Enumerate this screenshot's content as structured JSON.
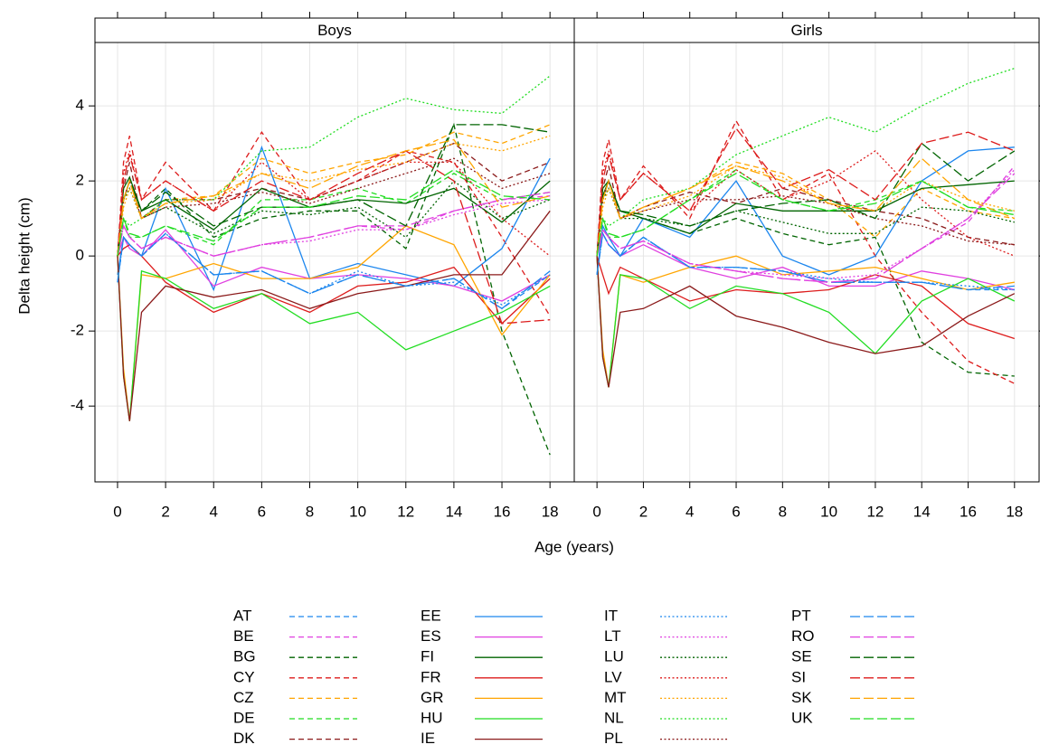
{
  "chart_data": [
    {
      "type": "line",
      "title": "Boys",
      "xlabel": "Age (years)",
      "ylabel": "Delta height (cm)",
      "x": [
        0,
        0.25,
        0.5,
        1,
        2,
        4,
        6,
        8,
        10,
        12,
        14,
        16,
        18
      ],
      "xlim": [
        -0.94,
        19.01
      ],
      "ylim": [
        -6.02,
        5.69
      ],
      "xticks": [
        0,
        2,
        4,
        6,
        8,
        10,
        12,
        14,
        16,
        18
      ],
      "yticks": [
        -4,
        -2,
        0,
        2,
        4
      ],
      "grid": true,
      "series": [
        {
          "name": "AT",
          "color": "#1c86ee",
          "linetype": "dashed",
          "values": [
            -0.7,
            0.5,
            0.3,
            0,
            0.6,
            -0.5,
            -0.4,
            -1,
            -0.5,
            -0.8,
            -0.6,
            -1.4,
            -0.5
          ]
        },
        {
          "name": "BE",
          "color": "#e040e0",
          "linetype": "dashed",
          "values": [
            0,
            0.8,
            0.5,
            0.2,
            0.5,
            0,
            0.3,
            0.5,
            0.8,
            0.7,
            1.2,
            1.5,
            1.6
          ]
        },
        {
          "name": "BG",
          "color": "#006400",
          "linetype": "dashed",
          "values": [
            0,
            1.5,
            2,
            1.2,
            1.8,
            0.5,
            1,
            1.2,
            1.2,
            0.2,
            3.5,
            -2,
            -5.3
          ]
        },
        {
          "name": "CY",
          "color": "#dd1c1c",
          "linetype": "dashed",
          "values": [
            0,
            2.5,
            3.2,
            1.5,
            2.5,
            1.2,
            3.3,
            1.5,
            2,
            2.8,
            2.5,
            0.5,
            -1.6
          ]
        },
        {
          "name": "CZ",
          "color": "#ffa500",
          "linetype": "dashed",
          "values": [
            0,
            1.5,
            2,
            1,
            1.5,
            1.6,
            2.6,
            2.2,
            2.5,
            2.7,
            3.3,
            3,
            3.5
          ]
        },
        {
          "name": "DE",
          "color": "#22dd22",
          "linetype": "dashed",
          "values": [
            0,
            1,
            0.5,
            0.5,
            0.8,
            0.3,
            1.5,
            1.5,
            1.8,
            1.4,
            2.2,
            1.5,
            1.7
          ]
        },
        {
          "name": "DK",
          "color": "#8b1a1a",
          "linetype": "dashed",
          "values": [
            0,
            1.8,
            2.5,
            1,
            1.5,
            1.5,
            1.8,
            1.5,
            2,
            2.5,
            3,
            2,
            2.5
          ]
        },
        {
          "name": "EE",
          "color": "#1c86ee",
          "linetype": "solid",
          "values": [
            -0.5,
            0.5,
            0.3,
            0,
            1.8,
            -0.9,
            2.9,
            -0.6,
            -0.2,
            -0.5,
            -0.8,
            0.2,
            2.6
          ]
        },
        {
          "name": "ES",
          "color": "#e040e0",
          "linetype": "solid",
          "values": [
            0,
            0.5,
            0.2,
            0,
            0.7,
            -0.8,
            -0.3,
            -0.6,
            -0.5,
            -0.6,
            -0.8,
            -1.2,
            -0.5
          ]
        },
        {
          "name": "FI",
          "color": "#006400",
          "linetype": "solid",
          "values": [
            0,
            1.8,
            2.1,
            1.2,
            1.5,
            0.7,
            1.8,
            1.3,
            1.5,
            1.4,
            1.8,
            0.9,
            2
          ]
        },
        {
          "name": "FR",
          "color": "#dd1c1c",
          "linetype": "solid",
          "values": [
            0,
            0.2,
            0.3,
            0,
            -0.7,
            -1.5,
            -1,
            -1.5,
            -0.8,
            -0.7,
            -0.3,
            -1.8,
            -0.6
          ]
        },
        {
          "name": "GR",
          "color": "#ffa500",
          "linetype": "solid",
          "values": [
            0,
            -3,
            -4.4,
            -0.5,
            -0.6,
            -0.2,
            -0.6,
            -0.6,
            -0.3,
            0.8,
            0.3,
            -2.1,
            -0.5
          ]
        },
        {
          "name": "HU",
          "color": "#22dd22",
          "linetype": "solid",
          "values": [
            0,
            -3.2,
            -4.4,
            -0.4,
            -0.6,
            -1.4,
            -1,
            -1.8,
            -1.5,
            -2.5,
            -2,
            -1.5,
            -0.8
          ]
        },
        {
          "name": "IE",
          "color": "#8b1a1a",
          "linetype": "solid",
          "values": [
            0,
            -3.2,
            -4.4,
            -1.5,
            -0.8,
            -1.1,
            -0.9,
            -1.4,
            -1,
            -0.8,
            -0.5,
            -0.5,
            1.2
          ]
        },
        {
          "name": "IT",
          "color": "#1c86ee",
          "linetype": "dotted",
          "values": [
            -0.7,
            0.5,
            0.3,
            0,
            0.6,
            -0.5,
            -0.4,
            -1,
            -0.4,
            -0.8,
            -0.7,
            -1.3,
            -0.5
          ]
        },
        {
          "name": "LT",
          "color": "#e040e0",
          "linetype": "dotted",
          "values": [
            0,
            0.8,
            0.5,
            0.2,
            0.5,
            0,
            0.3,
            0.4,
            0.7,
            0.7,
            1.1,
            1.4,
            1.5
          ]
        },
        {
          "name": "LU",
          "color": "#006400",
          "linetype": "dotted",
          "values": [
            0,
            1.5,
            1.8,
            1,
            1.3,
            0.6,
            1.2,
            1.1,
            1.3,
            0.5,
            2,
            1,
            1.5
          ]
        },
        {
          "name": "LV",
          "color": "#dd1c1c",
          "linetype": "dotted",
          "values": [
            0,
            2.2,
            2.8,
            1.5,
            2,
            1.2,
            2.5,
            1.5,
            2,
            2.5,
            2.5,
            1,
            0
          ]
        },
        {
          "name": "MT",
          "color": "#ffa500",
          "linetype": "dotted",
          "values": [
            0,
            1.3,
            1.8,
            1,
            1.4,
            1.5,
            2.2,
            2,
            2.3,
            2.5,
            3,
            2.8,
            3.2
          ]
        },
        {
          "name": "NL",
          "color": "#22dd22",
          "linetype": "dotted",
          "values": [
            0,
            1,
            0.8,
            1,
            1.5,
            1.5,
            2.8,
            2.9,
            3.7,
            4.2,
            3.9,
            3.8,
            4.8
          ]
        },
        {
          "name": "PL",
          "color": "#8b1a1a",
          "linetype": "dotted",
          "values": [
            0,
            1.5,
            2,
            1,
            1.3,
            1.4,
            1.7,
            1.4,
            1.8,
            2.2,
            2.6,
            1.8,
            2.2
          ]
        },
        {
          "name": "PT",
          "color": "#1c86ee",
          "linetype": "longdash",
          "values": [
            -0.7,
            0.5,
            0.3,
            0,
            0.6,
            -0.5,
            -0.4,
            -1,
            -0.5,
            -0.8,
            -0.6,
            -1.4,
            -0.4
          ]
        },
        {
          "name": "RO",
          "color": "#e040e0",
          "linetype": "longdash",
          "values": [
            0,
            0.8,
            0.5,
            0.2,
            0.5,
            0,
            0.3,
            0.5,
            0.8,
            0.8,
            1.2,
            1.5,
            1.7
          ]
        },
        {
          "name": "SE",
          "color": "#006400",
          "linetype": "longdash",
          "values": [
            0,
            1.5,
            2,
            1.2,
            1.7,
            0.8,
            1.3,
            1.3,
            1.5,
            0.8,
            3.5,
            3.5,
            3.3
          ]
        },
        {
          "name": "SI",
          "color": "#dd1c1c",
          "linetype": "longdash",
          "values": [
            0,
            2,
            2.7,
            1.5,
            2,
            1.2,
            2,
            1.5,
            2.2,
            2.8,
            2,
            -1.8,
            -1.7
          ]
        },
        {
          "name": "SK",
          "color": "#ffa500",
          "linetype": "longdash",
          "values": [
            0,
            1.5,
            2,
            1,
            1.4,
            1.6,
            2.2,
            1.8,
            2.4,
            2.8,
            3.1,
            1.3,
            1.6
          ]
        },
        {
          "name": "UK",
          "color": "#22dd22",
          "linetype": "longdash",
          "values": [
            0,
            1,
            0.6,
            0.5,
            0.8,
            0.4,
            1.3,
            1.3,
            1.6,
            1.5,
            2.3,
            1.6,
            1.5
          ]
        }
      ]
    },
    {
      "type": "line",
      "title": "Girls",
      "x": [
        0,
        0.25,
        0.5,
        1,
        2,
        4,
        6,
        8,
        10,
        12,
        14,
        16,
        18
      ],
      "xlim": [
        -0.98,
        19.06
      ],
      "ylim": [
        -6.02,
        5.69
      ],
      "xticks": [
        0,
        2,
        4,
        6,
        8,
        10,
        12,
        14,
        16,
        18
      ],
      "series": [
        {
          "values": [
            -0.5,
            0.6,
            0.3,
            0,
            0.5,
            -0.3,
            -0.3,
            -0.4,
            -0.7,
            -0.7,
            -0.7,
            -0.9,
            -0.9
          ]
        },
        {
          "values": [
            0,
            0.7,
            0.5,
            0.2,
            0.4,
            -0.2,
            -0.4,
            -0.6,
            -0.7,
            -0.6,
            0.2,
            0.9,
            2.4
          ]
        },
        {
          "values": [
            0,
            1.6,
            2,
            1.2,
            1,
            0.6,
            1,
            0.6,
            0.3,
            0.5,
            -2.3,
            -3.1,
            -3.2
          ]
        },
        {
          "values": [
            0,
            2.5,
            3.1,
            1.5,
            2.4,
            1,
            3.6,
            1.5,
            2.2,
            0,
            -1.5,
            -2.8,
            -3.4
          ]
        },
        {
          "values": [
            0,
            1.5,
            2,
            1,
            1.3,
            1.8,
            2.5,
            2.2,
            1.5,
            0.5,
            1.8,
            1.2,
            1
          ]
        },
        {
          "values": [
            0,
            1,
            0.5,
            0.5,
            0.7,
            1.5,
            2.3,
            1.5,
            1.2,
            1.5,
            2,
            1.3,
            1.2
          ]
        },
        {
          "values": [
            0,
            1.8,
            2.4,
            1,
            1.3,
            1.7,
            1.4,
            1.8,
            1.5,
            1.2,
            1,
            0.5,
            0.3
          ]
        },
        {
          "values": [
            -0.5,
            0.8,
            0.5,
            0,
            1,
            0.5,
            2,
            0,
            -0.5,
            0,
            2,
            2.8,
            2.9
          ]
        },
        {
          "values": [
            0,
            0.6,
            0.3,
            0,
            0.3,
            -0.3,
            -0.6,
            -0.3,
            -0.8,
            -0.8,
            -0.4,
            -0.6,
            -0.9
          ]
        },
        {
          "values": [
            0,
            1.8,
            2,
            1.2,
            1,
            0.6,
            1.4,
            1.2,
            1.2,
            1.2,
            1.8,
            1.9,
            2
          ]
        },
        {
          "values": [
            0,
            -0.5,
            -1,
            -0.3,
            -0.6,
            -1.2,
            -0.9,
            -1,
            -0.9,
            -0.5,
            -0.8,
            -1.8,
            -2.2
          ]
        },
        {
          "values": [
            0,
            -2.5,
            -3.5,
            -0.5,
            -0.7,
            -0.3,
            0,
            -0.5,
            -0.4,
            -0.3,
            -0.6,
            -0.9,
            -0.7
          ]
        },
        {
          "values": [
            0,
            -2.7,
            -3.5,
            -0.5,
            -0.6,
            -1.4,
            -0.8,
            -1,
            -1.5,
            -2.6,
            -1.2,
            -0.6,
            -1.2
          ]
        },
        {
          "values": [
            0,
            -2.7,
            -3.5,
            -1.5,
            -1.4,
            -0.8,
            -1.6,
            -1.9,
            -2.3,
            -2.6,
            -2.4,
            -1.6,
            -1
          ]
        },
        {
          "values": [
            -0.5,
            0.6,
            0.3,
            0,
            0.5,
            -0.3,
            -0.3,
            -0.4,
            -0.6,
            -0.7,
            -0.7,
            -0.8,
            -0.9
          ]
        },
        {
          "values": [
            0,
            0.7,
            0.5,
            0.2,
            0.4,
            -0.2,
            -0.4,
            -0.5,
            -0.6,
            -0.5,
            0.2,
            1,
            2.3
          ]
        },
        {
          "values": [
            0,
            1.5,
            1.8,
            1,
            1,
            0.8,
            1.2,
            0.9,
            0.6,
            0.6,
            1.3,
            1.2,
            0.9
          ]
        },
        {
          "values": [
            0,
            2.2,
            2.8,
            1.5,
            2.2,
            1.2,
            2.3,
            1.5,
            2,
            2.8,
            1.5,
            0.5,
            0
          ]
        },
        {
          "values": [
            0,
            1.3,
            1.8,
            1,
            1.2,
            1.6,
            2.4,
            2.1,
            1.4,
            1.2,
            2,
            1.5,
            1.2
          ]
        },
        {
          "values": [
            0,
            1,
            0.8,
            1,
            1.5,
            1.8,
            2.7,
            3.2,
            3.7,
            3.3,
            4,
            4.6,
            5
          ]
        },
        {
          "values": [
            0,
            1.5,
            2,
            1,
            1.2,
            1.5,
            1.5,
            1.6,
            1.4,
            1,
            0.8,
            0.4,
            0.3
          ]
        },
        {
          "values": [
            -0.5,
            0.6,
            0.3,
            0,
            0.5,
            -0.3,
            -0.3,
            -0.4,
            -0.7,
            -0.7,
            -0.7,
            -0.9,
            -0.8
          ]
        },
        {
          "values": [
            0,
            0.7,
            0.5,
            0.2,
            0.4,
            -0.2,
            -0.4,
            -0.6,
            -0.7,
            -0.6,
            0.2,
            1,
            2.2
          ]
        },
        {
          "values": [
            0,
            1.6,
            2,
            1.2,
            1.1,
            0.8,
            1.2,
            1.4,
            1.5,
            1,
            3,
            2,
            2.8
          ]
        },
        {
          "values": [
            0,
            2,
            2.7,
            1.5,
            2.2,
            1.2,
            3.4,
            1.8,
            2.3,
            1.5,
            3,
            3.3,
            2.8
          ]
        },
        {
          "values": [
            0,
            1.5,
            2,
            1,
            1.3,
            1.8,
            2.4,
            2,
            1.4,
            1.2,
            2.6,
            1.5,
            1
          ]
        },
        {
          "values": [
            0,
            1,
            0.6,
            0.5,
            0.7,
            1.5,
            2.2,
            1.5,
            1.2,
            1.4,
            2,
            1.3,
            1.1
          ]
        }
      ]
    }
  ]
}
